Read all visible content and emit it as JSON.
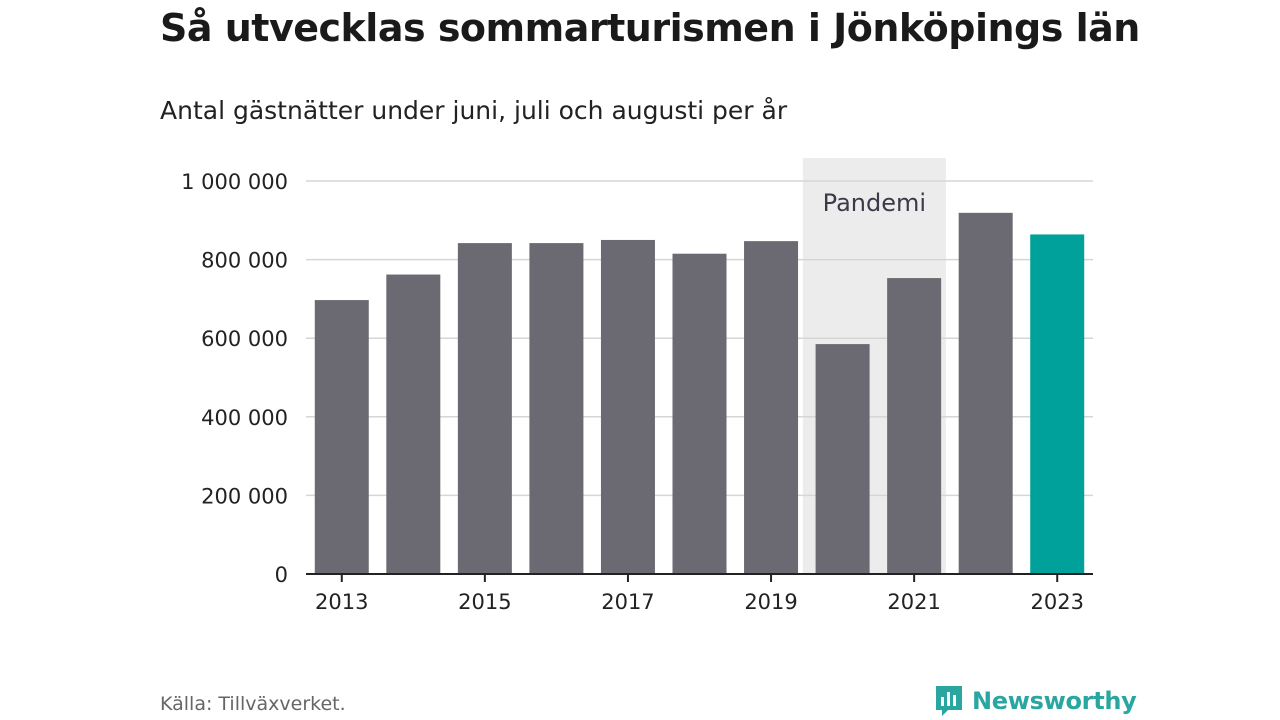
{
  "header": {
    "title": "Så utvecklas sommarturismen i Jönköpings län",
    "subtitle": "Antal gästnätter under juni, juli och augusti per år"
  },
  "footer": {
    "source": "Källa: Tillväxverket.",
    "brand": "Newsworthy",
    "brand_icon": "newsworthy-logo-icon"
  },
  "colors": {
    "bar": "#6b6a72",
    "highlight": "#00a19a",
    "shade": "#ececec",
    "grid": "#d6d6d6",
    "brand": "#2aa6a0"
  },
  "chart_data": {
    "type": "bar",
    "categories": [
      "2013",
      "2014",
      "2015",
      "2016",
      "2017",
      "2018",
      "2019",
      "2020",
      "2021",
      "2022",
      "2023"
    ],
    "values": [
      697000,
      762000,
      842000,
      842000,
      850000,
      815000,
      847000,
      585000,
      753000,
      919000,
      864000
    ],
    "highlight_index": 10,
    "x_tick_labels": [
      "2013",
      "2015",
      "2017",
      "2019",
      "2021",
      "2023"
    ],
    "y_ticks": [
      0,
      200000,
      400000,
      600000,
      800000,
      1000000
    ],
    "y_tick_labels": [
      "0",
      "200 000",
      "400 000",
      "600 000",
      "800 000",
      "1 000 000"
    ],
    "ylim": [
      0,
      1000000
    ],
    "grid": true,
    "annotation": {
      "label": "Pandemi",
      "from": "2020",
      "to": "2021"
    }
  }
}
